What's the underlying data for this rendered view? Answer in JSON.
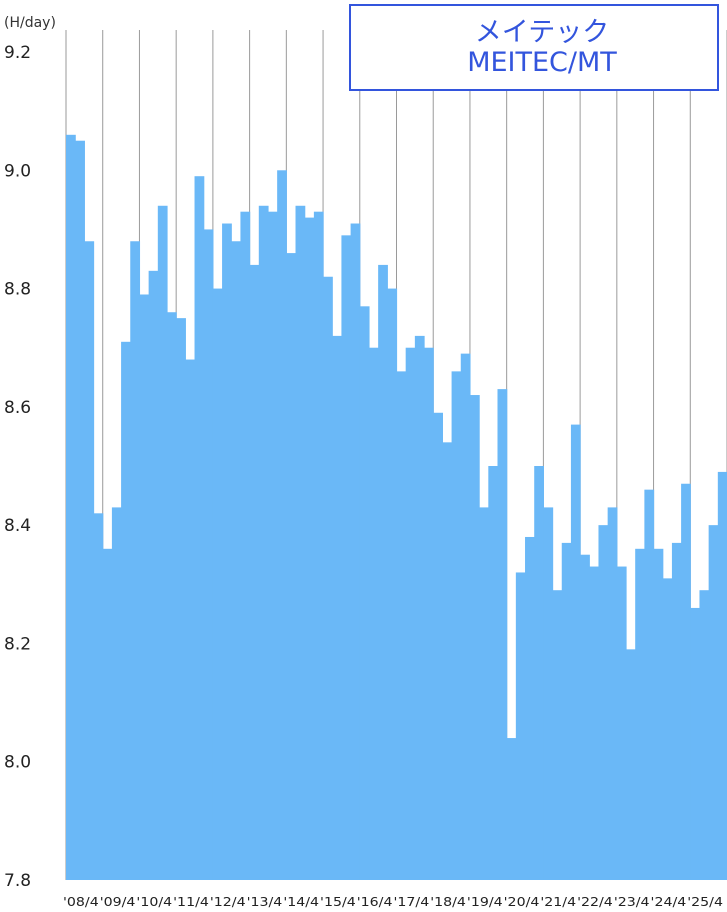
{
  "chart_data": {
    "type": "bar",
    "unit_label": "(H/day)",
    "ylim": [
      7.8,
      9.2
    ],
    "yticks": [
      "9.2",
      "9.0",
      "8.8",
      "8.6",
      "8.4",
      "8.2",
      "8.0",
      "7.8"
    ],
    "xlabels": [
      "'08/4",
      "'09/4",
      "'10/4",
      "'11/4",
      "'12/4",
      "'13/4",
      "'14/4",
      "'15/4",
      "'16/4",
      "'17/4",
      "'18/4",
      "'19/4",
      "'20/4",
      "'21/4",
      "'22/4",
      "'23/4",
      "'24/4",
      "'25/4"
    ],
    "months_per_bar": 3,
    "values": [
      9.06,
      9.05,
      8.88,
      8.42,
      8.36,
      8.43,
      8.71,
      8.88,
      8.79,
      8.83,
      8.94,
      8.76,
      8.75,
      8.68,
      8.99,
      8.9,
      8.8,
      8.91,
      8.88,
      8.93,
      8.84,
      8.94,
      8.93,
      9.0,
      8.86,
      8.94,
      8.92,
      8.93,
      8.82,
      8.72,
      8.89,
      8.91,
      8.77,
      8.7,
      8.84,
      8.8,
      8.66,
      8.7,
      8.72,
      8.7,
      8.59,
      8.54,
      8.66,
      8.69,
      8.62,
      8.43,
      8.5,
      8.63,
      8.04,
      8.32,
      8.38,
      8.5,
      8.43,
      8.29,
      8.37,
      8.57,
      8.35,
      8.33,
      8.4,
      8.43,
      8.33,
      8.19,
      8.36,
      8.46,
      8.36,
      8.31,
      8.37,
      8.47,
      8.26,
      8.29,
      8.4,
      8.49
    ],
    "bar_color": "#6ab8f7",
    "gridline_color": "#9a9a9a",
    "legend": {
      "lines": [
        "メイテック",
        "MEITEC/MT"
      ],
      "color": "#3355dd",
      "position": "top-right"
    }
  }
}
